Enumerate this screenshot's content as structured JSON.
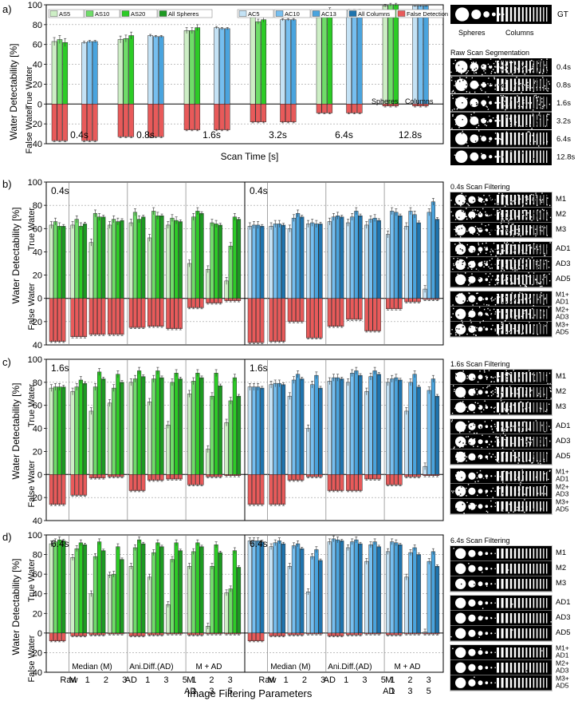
{
  "figure": {
    "x_title": "Scan Time [s]",
    "bottom_title": "Image Filtering Parameters",
    "y_title": "Water Detectability [%]",
    "true_label": "True Water",
    "false_label": "False Water"
  },
  "colors": {
    "AS5": "#cdeec5",
    "AS10": "#6fdd69",
    "AS20": "#2ccc26",
    "SPH": "#1d9a22",
    "AC5": "#c4e2f5",
    "AC10": "#76bff0",
    "AC13": "#4aa4de",
    "COL": "#1f74ae",
    "FALSE": "#e85a5a",
    "grid": "#9a9a9a",
    "sep": "#808080"
  },
  "legend": [
    {
      "key": "AS5",
      "label": "AS5"
    },
    {
      "key": "AS10",
      "label": "AS10"
    },
    {
      "key": "AS20",
      "label": "AS20"
    },
    {
      "key": "SPH",
      "label": "All Spheres"
    },
    {
      "key": "AC5",
      "label": "AC5"
    },
    {
      "key": "AC10",
      "label": "AC10"
    },
    {
      "key": "AC13",
      "label": "AC13"
    },
    {
      "key": "COL",
      "label": "All Columns"
    },
    {
      "key": "FALSE",
      "label": "False Detection"
    }
  ],
  "chart_data": [
    {
      "panel": "a)",
      "type": "bar",
      "ylim": [
        -40,
        100
      ],
      "yticks": [
        -40,
        -20,
        0,
        20,
        40,
        60,
        80,
        100
      ],
      "categories": [
        "0.4s",
        "0.8s",
        "1.6s",
        "3.2s",
        "6.4s",
        "12.8s"
      ],
      "subgroups": [
        "Spheres",
        "Columns"
      ],
      "series": [
        {
          "name": "AS5",
          "values": [
            63,
            65,
            74,
            90,
            90,
            99
          ]
        },
        {
          "name": "AS10",
          "values": [
            65,
            66,
            74,
            83,
            93,
            100
          ]
        },
        {
          "name": "AS20",
          "values": [
            62,
            69,
            77,
            85,
            95,
            100
          ]
        },
        {
          "name": "AC5",
          "values": [
            62,
            69,
            77,
            85,
            94,
            99
          ]
        },
        {
          "name": "AC10",
          "values": [
            63,
            68,
            76,
            85,
            94,
            99
          ]
        },
        {
          "name": "AC13",
          "values": [
            63,
            68,
            76,
            85,
            94,
            99
          ]
        },
        {
          "name": "False Spheres",
          "values": [
            -37,
            -33,
            -26,
            -18,
            -9,
            -2
          ]
        },
        {
          "name": "False Columns",
          "values": [
            -37,
            -33,
            -26,
            -18,
            -9,
            -2
          ]
        }
      ],
      "annotations": [
        "Spheres",
        "Columns"
      ]
    },
    {
      "panel": "b)",
      "type": "bar",
      "time": "0.4s",
      "ylim": [
        -40,
        100
      ],
      "yticks": [
        -40,
        -20,
        0,
        20,
        40,
        60,
        80,
        100
      ],
      "categories": [
        "Raw",
        "M1",
        "M2",
        "M3",
        "AD1",
        "AD3",
        "AD5",
        "M1+AD1",
        "M2+AD3",
        "M3+AD5"
      ],
      "spheres": {
        "AS5": [
          63,
          63,
          48,
          63,
          65,
          52,
          63,
          30,
          25,
          15
        ],
        "AS10": [
          66,
          68,
          73,
          68,
          74,
          75,
          69,
          70,
          65,
          45
        ],
        "AS20": [
          62,
          62,
          70,
          66,
          68,
          71,
          67,
          75,
          64,
          70
        ],
        "SPH": [
          62,
          64,
          70,
          67,
          70,
          71,
          66,
          73,
          63,
          68
        ],
        "FALSE": [
          -37,
          -33,
          -31,
          -31,
          -25,
          -24,
          -26,
          -8,
          -4,
          -2
        ]
      },
      "columns": {
        "AC5": [
          62,
          62,
          60,
          64,
          66,
          65,
          63,
          55,
          62,
          8
        ],
        "AC10": [
          63,
          64,
          69,
          65,
          70,
          70,
          68,
          75,
          75,
          74
        ],
        "AC13": [
          63,
          64,
          73,
          64,
          71,
          75,
          69,
          74,
          72,
          83
        ],
        "COL": [
          62,
          63,
          70,
          64,
          70,
          71,
          67,
          71,
          65,
          68
        ],
        "FALSE": [
          -38,
          -37,
          -20,
          -34,
          -24,
          -18,
          -28,
          -9,
          -3,
          -1
        ]
      }
    },
    {
      "panel": "c)",
      "type": "bar",
      "time": "1.6s",
      "ylim": [
        -40,
        100
      ],
      "yticks": [
        -40,
        -20,
        0,
        20,
        40,
        60,
        80,
        100
      ],
      "categories": [
        "Raw",
        "M1",
        "M2",
        "M3",
        "AD1",
        "AD3",
        "AD5",
        "M1+AD1",
        "M2+AD3",
        "M3+AD5"
      ],
      "spheres": {
        "AS5": [
          75,
          72,
          55,
          62,
          80,
          63,
          43,
          70,
          22,
          45
        ],
        "AS10": [
          76,
          76,
          76,
          75,
          83,
          83,
          80,
          81,
          68,
          64
        ],
        "AS20": [
          76,
          82,
          89,
          87,
          90,
          90,
          88,
          88,
          88,
          84
        ],
        "SPH": [
          76,
          79,
          83,
          80,
          85,
          84,
          83,
          84,
          77,
          68
        ],
        "FALSE": [
          -26,
          -18,
          -3,
          -2,
          -14,
          -5,
          -4,
          -9,
          -2,
          -1
        ]
      },
      "columns": {
        "AC5": [
          76,
          78,
          68,
          40,
          81,
          80,
          72,
          80,
          55,
          7
        ],
        "AC10": [
          76,
          79,
          82,
          78,
          84,
          88,
          85,
          83,
          80,
          73
        ],
        "AC13": [
          76,
          79,
          87,
          86,
          84,
          90,
          90,
          84,
          87,
          83
        ],
        "COL": [
          75,
          78,
          83,
          75,
          83,
          86,
          87,
          82,
          76,
          68
        ],
        "FALSE": [
          -26,
          -26,
          -5,
          -2,
          -14,
          -14,
          -4,
          -9,
          -2,
          -1
        ]
      }
    },
    {
      "panel": "d)",
      "type": "bar",
      "time": "6.4s",
      "ylim": [
        -40,
        100
      ],
      "yticks": [
        -40,
        -20,
        0,
        20,
        40,
        60,
        80,
        100
      ],
      "categories": [
        "Raw",
        "M1",
        "M2",
        "M3",
        "AD1",
        "AD3",
        "AD5",
        "M1+AD1",
        "M2+AD3",
        "M3+AD5"
      ],
      "group_labels": [
        "Median (M)",
        "Ani.Diff.(AD)",
        "M + AD"
      ],
      "tick_labels": [
        {
          "top": "Raw",
          "bottom": ""
        },
        {
          "top": "M",
          "bottom": ""
        },
        {
          "top": "1",
          "bottom": ""
        },
        {
          "top": "2",
          "bottom": ""
        },
        {
          "top": "3",
          "bottom": ""
        },
        {
          "top": "AD",
          "bottom": ""
        },
        {
          "top": "1",
          "bottom": ""
        },
        {
          "top": "3",
          "bottom": ""
        },
        {
          "top": "5",
          "bottom": ""
        },
        {
          "top": "M",
          "bottom": "AD"
        },
        {
          "top": "1",
          "bottom": "1"
        },
        {
          "top": "2",
          "bottom": "3"
        },
        {
          "top": "3",
          "bottom": "5"
        }
      ],
      "spheres": {
        "AS5": [
          91,
          77,
          40,
          59,
          68,
          57,
          29,
          68,
          7,
          41
        ],
        "AS10": [
          93,
          86,
          78,
          60,
          87,
          82,
          75,
          83,
          68,
          45
        ],
        "AS20": [
          95,
          92,
          93,
          88,
          95,
          92,
          92,
          92,
          90,
          84
        ],
        "SPH": [
          94,
          90,
          84,
          75,
          91,
          88,
          84,
          88,
          82,
          67
        ],
        "FALSE": [
          -8,
          -3,
          -2,
          -1,
          -3,
          -2,
          -1,
          -2,
          -1,
          -1
        ]
      },
      "columns": {
        "AC5": [
          94,
          88,
          68,
          42,
          93,
          87,
          73,
          83,
          57,
          1
        ],
        "AC10": [
          94,
          92,
          89,
          78,
          96,
          93,
          90,
          93,
          82,
          73
        ],
        "AC13": [
          94,
          94,
          91,
          85,
          95,
          95,
          93,
          92,
          87,
          83
        ],
        "COL": [
          93,
          91,
          86,
          74,
          94,
          91,
          88,
          90,
          80,
          68
        ],
        "FALSE": [
          -8,
          -3,
          -2,
          -1,
          -3,
          -2,
          -1,
          -2,
          -1,
          -1
        ]
      }
    }
  ],
  "images": {
    "gt": {
      "title": "",
      "tag": "GT",
      "sub_spheres": "Spheres",
      "sub_columns": "Columns"
    },
    "raw": {
      "title": "Raw Scan Segmentation",
      "labels": [
        "0.4s",
        "0.8s",
        "1.6s",
        "3.2s",
        "6.4s",
        "12.8s"
      ]
    },
    "groups": [
      {
        "title": "0.4s Scan Filtering",
        "noise": 0.75
      },
      {
        "title": "1.6s Scan Filtering",
        "noise": 0.45
      },
      {
        "title": "6.4s Scan Filtering",
        "noise": 0.03
      }
    ],
    "filter_labels": [
      "M1",
      "M2",
      "M3",
      "AD1",
      "AD3",
      "AD5",
      "M1+ AD1",
      "M2+ AD3",
      "M3+ AD5"
    ]
  }
}
